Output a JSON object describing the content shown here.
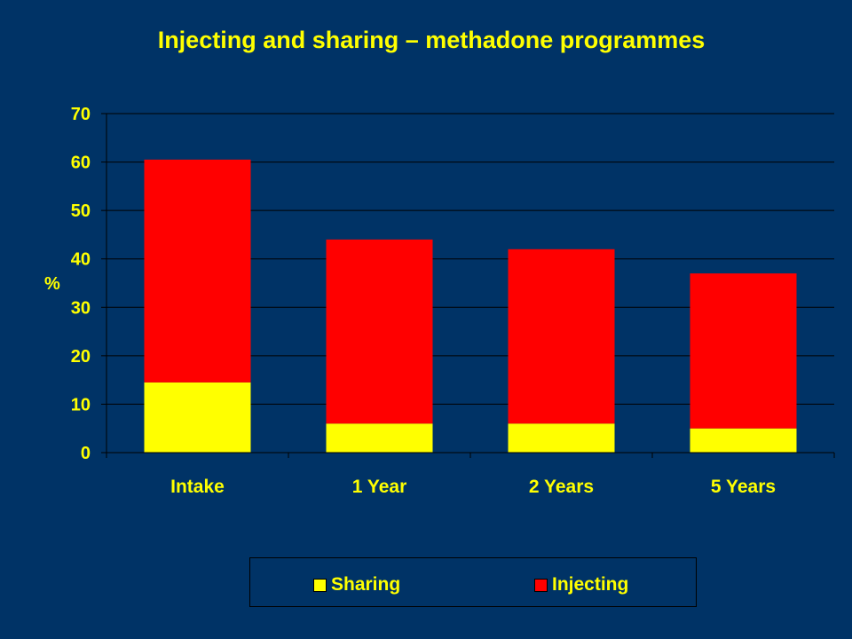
{
  "chart_data": {
    "type": "bar",
    "stacked": true,
    "title": "Injecting and sharing – methadone programmes",
    "ylabel": "%",
    "xlabel": "",
    "ylim": [
      0,
      70
    ],
    "yticks": [
      "0",
      "10",
      "20",
      "30",
      "40",
      "50",
      "60",
      "70"
    ],
    "grid": true,
    "legend_position": "bottom",
    "categories": [
      "Intake",
      "1 Year",
      "2 Years",
      "5 Years"
    ],
    "series": [
      {
        "name": "Sharing",
        "values": [
          14.5,
          6,
          6,
          5
        ],
        "color": "#FFFF00"
      },
      {
        "name": "Injecting",
        "values": [
          46,
          38,
          36,
          32
        ],
        "color": "#FF0000"
      }
    ],
    "colors": {
      "background": "#003366",
      "text": "#FFFF00",
      "gridline": "#000000"
    }
  }
}
